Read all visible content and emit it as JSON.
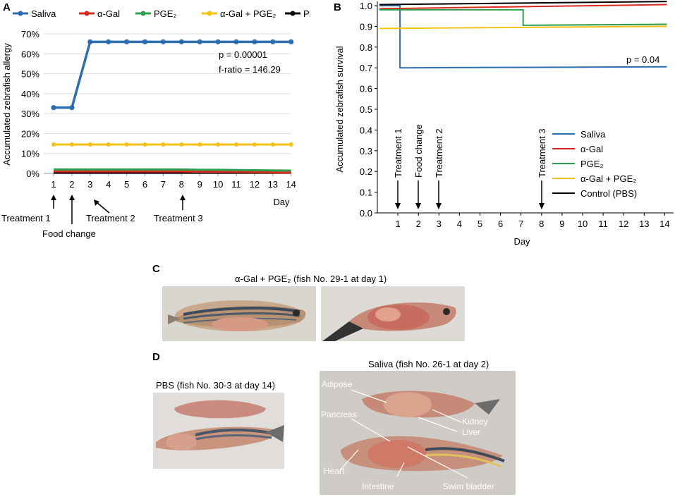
{
  "colors": {
    "saliva": "#2e6db0",
    "agal": "#d62b1e",
    "pge2": "#2e9e4f",
    "agal_pge2": "#f2c218",
    "pbs": "#000000"
  },
  "panel_a": {
    "letter": "A",
    "legend": [
      "Saliva",
      "α-Gal",
      "PGE₂",
      "α-Gal  + PGE₂",
      "PBS"
    ],
    "ylabel": "Accumulated zebrafish allergy",
    "xlabel": "Day",
    "stats_p": "p = 0.00001",
    "stats_f": "f-ratio = 146.29",
    "annotations": {
      "t1": "Treatment 1",
      "food": "Food change",
      "t2": "Treatment 2",
      "t3": "Treatment 3"
    }
  },
  "panel_b": {
    "letter": "B",
    "ylabel": "Accumulated zebrafish survival",
    "xlabel": "Day",
    "stats_p": "p = 0.04",
    "legend": [
      "Saliva",
      "α-Gal",
      "PGE₂",
      "α-Gal + PGE₂",
      "Control (PBS)"
    ],
    "annotations": {
      "t1": "Treatment 1",
      "food": "Food change",
      "t2": "Treatment 2",
      "t3": "Treatment 3"
    }
  },
  "panel_c": {
    "letter": "C",
    "title": "α-Gal + PGE₂ (fish No. 29-1 at day 1)"
  },
  "panel_d": {
    "letter": "D",
    "left_title": "PBS (fish No. 30-3 at day 14)",
    "right_title": "Saliva (fish No. 26-1 at day 2)",
    "labels": {
      "adipose": "Adipose",
      "pancreas": "Pancreas",
      "kidney": "Kidney",
      "liver": "Liver",
      "heart": "Heart",
      "intestine": "Intestine",
      "swim_bladder": "Swim bladder"
    }
  },
  "chart_data": [
    {
      "type": "line",
      "title": "",
      "xlabel": "Day",
      "ylabel": "Accumulated zebrafish allergy",
      "x": [
        1,
        2,
        3,
        4,
        5,
        6,
        7,
        8,
        9,
        10,
        11,
        12,
        13,
        14
      ],
      "ylim": [
        0,
        70
      ],
      "yticks": [
        "0%",
        "10%",
        "20%",
        "30%",
        "40%",
        "50%",
        "60%",
        "70%"
      ],
      "series": [
        {
          "name": "Saliva",
          "values": [
            33,
            33,
            66,
            66,
            66,
            66,
            66,
            66,
            66,
            66,
            66,
            66,
            66,
            66
          ]
        },
        {
          "name": "α-Gal",
          "values": [
            1,
            1,
            1,
            1,
            1,
            1,
            1,
            1,
            0.8,
            0.8,
            0.7,
            0.6,
            0.5,
            0.4
          ]
        },
        {
          "name": "PGE₂",
          "values": [
            2,
            2,
            2,
            2,
            2,
            2,
            2,
            2,
            1.8,
            1.8,
            1.7,
            1.6,
            1.5,
            1.4
          ]
        },
        {
          "name": "α-Gal  + PGE₂",
          "values": [
            14.5,
            14.5,
            14.5,
            14.5,
            14.5,
            14.5,
            14.5,
            14.5,
            14.5,
            14.5,
            14.5,
            14.5,
            14.5,
            14.5
          ]
        },
        {
          "name": "PBS",
          "values": [
            0.3,
            0.3,
            0.3,
            0.3,
            0.3,
            0.3,
            0.3,
            0.3,
            0.3,
            0.3,
            0.3,
            0.3,
            0.3,
            0.3
          ]
        }
      ],
      "annotations": [
        "p = 0.00001",
        "f-ratio = 146.29"
      ],
      "grid": true
    },
    {
      "type": "line",
      "title": "",
      "xlabel": "Day",
      "ylabel": "Accumulated zebrafish survival",
      "x": [
        1,
        2,
        3,
        4,
        5,
        6,
        7,
        8,
        9,
        10,
        11,
        12,
        13,
        14
      ],
      "ylim": [
        0,
        1.0
      ],
      "yticks": [
        "0.0",
        "0.1",
        "0.2",
        "0.3",
        "0.4",
        "0.5",
        "0.6",
        "0.7",
        "0.8",
        "0.9",
        "1.0"
      ],
      "series": [
        {
          "name": "Saliva",
          "steps": [
            [
              0,
              1.0
            ],
            [
              1,
              1.0
            ],
            [
              1,
              0.7
            ],
            [
              14,
              0.705
            ]
          ]
        },
        {
          "name": "α-Gal",
          "steps": [
            [
              0,
              0.985
            ],
            [
              14,
              1.005
            ]
          ]
        },
        {
          "name": "PGE₂",
          "steps": [
            [
              0,
              0.98
            ],
            [
              7,
              0.98
            ],
            [
              7,
              0.905
            ],
            [
              14,
              0.91
            ]
          ]
        },
        {
          "name": "α-Gal + PGE₂",
          "steps": [
            [
              0,
              0.89
            ],
            [
              14,
              0.9
            ]
          ]
        },
        {
          "name": "Control (PBS)",
          "steps": [
            [
              0,
              1.005
            ],
            [
              14,
              1.02
            ]
          ]
        }
      ],
      "annotations": [
        "p = 0.04"
      ],
      "legend": "right",
      "grid": false
    }
  ]
}
